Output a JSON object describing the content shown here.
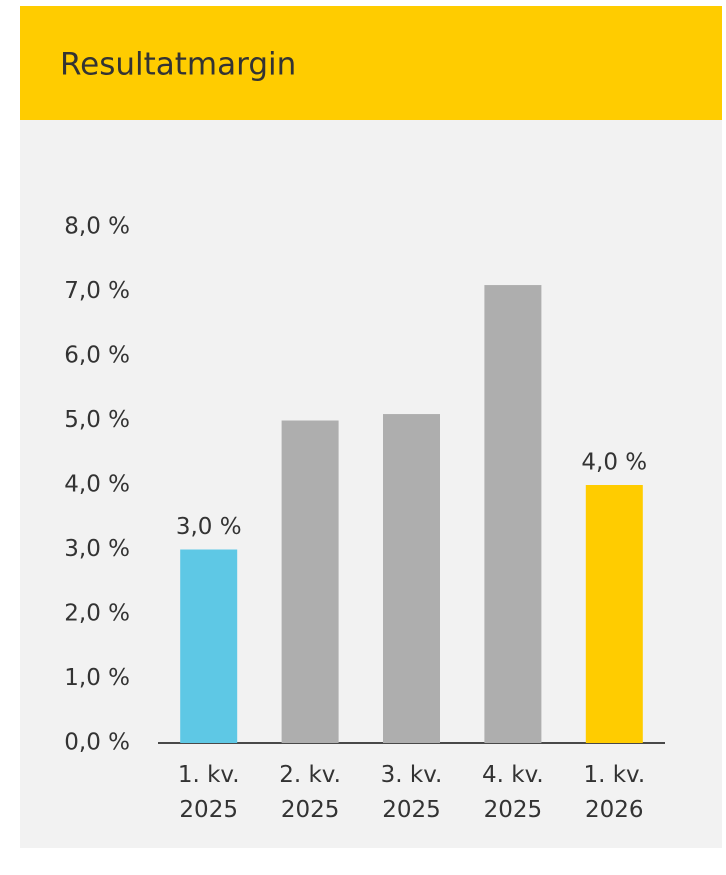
{
  "chart_data": {
    "type": "bar",
    "title": "Resultatmargin",
    "categories": [
      "1. kv. 2025",
      "2. kv. 2025",
      "3. kv. 2025",
      "4. kv. 2025",
      "1. kv. 2026"
    ],
    "values": [
      3.0,
      5.0,
      5.1,
      7.1,
      4.0
    ],
    "value_labels": [
      "3,0 %",
      null,
      null,
      null,
      "4,0 %"
    ],
    "colors": [
      "#5ec8e5",
      "#aeaeae",
      "#aeaeae",
      "#aeaeae",
      "#ffcc00"
    ],
    "ylim": [
      0,
      8
    ],
    "yticks": [
      {
        "value": 0,
        "label": "0,0 %"
      },
      {
        "value": 1,
        "label": "1,0 %"
      },
      {
        "value": 2,
        "label": "2,0 %"
      },
      {
        "value": 3,
        "label": "3,0 %"
      },
      {
        "value": 4,
        "label": "4,0 %"
      },
      {
        "value": 5,
        "label": "5,0 %"
      },
      {
        "value": 6,
        "label": "6,0 %"
      },
      {
        "value": 7,
        "label": "7,0 %"
      },
      {
        "value": 8,
        "label": "8,0 %"
      }
    ],
    "grid": false
  }
}
